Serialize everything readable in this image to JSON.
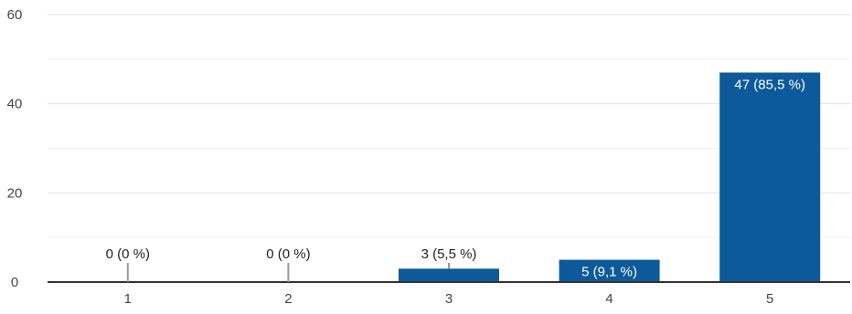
{
  "chart_data": {
    "type": "bar",
    "categories": [
      "1",
      "2",
      "3",
      "4",
      "5"
    ],
    "values": [
      0,
      0,
      3,
      5,
      47
    ],
    "data_labels": [
      "0 (0 %)",
      "0 (0 %)",
      "3 (5,5 %)",
      "5 (9,1 %)",
      "47 (85,5 %)"
    ],
    "y_ticks": [
      "0",
      "20",
      "40",
      "60"
    ],
    "ylim": [
      0,
      60
    ],
    "title": "",
    "xlabel": "",
    "ylabel": "",
    "grid": true,
    "legend": "none",
    "colors": {
      "bar": "#0d5a9a",
      "grid": "#e8e8e8",
      "axis": "#333333",
      "label_inside": "#ffffff",
      "label_outside": "#222222",
      "leader": "#999999"
    }
  }
}
